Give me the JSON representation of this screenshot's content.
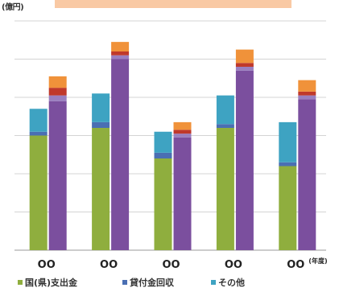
{
  "chart_data": {
    "type": "bar",
    "stacked": true,
    "unit_label": "(億円)",
    "title": "",
    "categories": [
      "OO",
      "OO",
      "OO",
      "OO",
      "OO"
    ],
    "x_suffix_last": "(年度)",
    "ylim": [
      0,
      6
    ],
    "grid": true,
    "legend_position": "bottom",
    "groups": [
      {
        "bar_a": {
          "国(県)支出金": 3.0,
          "貸付金回収": 0.1,
          "その他": 0.6
        },
        "bar_b": {
          "国(県)支出金": 3.9,
          "貸付金回収": 0.15,
          "その他": 0.2,
          "orange": 0.3
        }
      },
      {
        "bar_a": {
          "国(県)支出金": 3.2,
          "貸付金回収": 0.15,
          "その他": 0.75
        },
        "bar_b": {
          "国(県)支出金": 5.0,
          "貸付金回収": 0.1,
          "その他": 0.1,
          "orange": 0.25
        }
      },
      {
        "bar_a": {
          "国(県)支出金": 2.4,
          "貸付金回収": 0.15,
          "その他": 0.55
        },
        "bar_b": {
          "国(県)支出金": 2.95,
          "貸付金回収": 0.1,
          "その他": 0.1,
          "orange": 0.2
        }
      },
      {
        "bar_a": {
          "国(県)支出金": 3.2,
          "貸付金回収": 0.1,
          "その他": 0.75
        },
        "bar_b": {
          "国(県)支出金": 4.7,
          "貸付金回収": 0.1,
          "その他": 0.1,
          "orange": 0.35
        }
      },
      {
        "bar_a": {
          "国(県)支出金": 2.2,
          "貸付金回収": 0.1,
          "その他": 1.05
        },
        "bar_b": {
          "国(県)支出金": 3.95,
          "貸付金回収": 0.1,
          "その他": 0.1,
          "orange": 0.3
        }
      }
    ],
    "colors": {
      "国(県)支出金": "#8fae3e",
      "貸付金回収": "#4a6fb3",
      "その他": "#3ea3c2",
      "bar_b_main": "#7b4f9e",
      "bar_b_red": "#c0392b",
      "orange": "#f0923a"
    },
    "legend": [
      {
        "label": "国(県)支出金",
        "color": "#8fae3e"
      },
      {
        "label": "貸付金回収",
        "color": "#4a6fb3"
      },
      {
        "label": "その他",
        "color": "#3ea3c2"
      }
    ]
  }
}
